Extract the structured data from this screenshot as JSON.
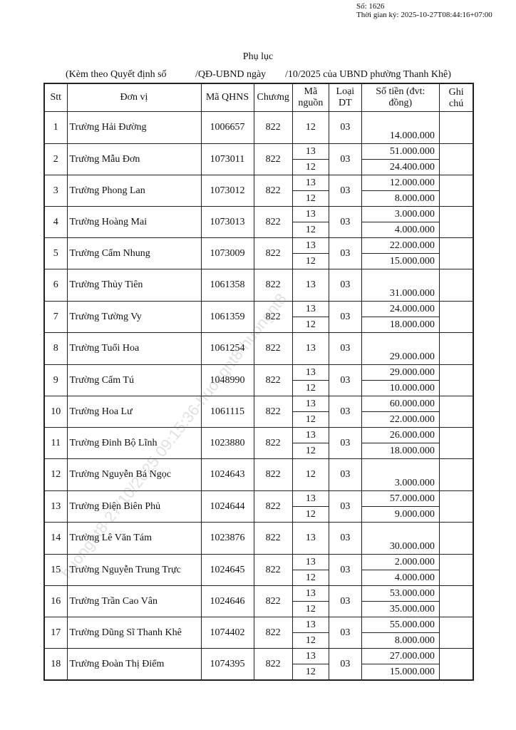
{
  "signature": {
    "number": "Số: 1626",
    "signed_time": "Thời gian ký: 2025-10-27T08:44:16+07:00"
  },
  "title": "Phụ lục",
  "subtitle": {
    "part1": "(Kèm theo Quyết định số",
    "part2": "/QĐ-UBND ngày",
    "part3": "/10/2025 của UBND phường Thanh Khê)"
  },
  "watermark": "huongnt8-27/10/2025 09:15:36-huongnt8-huongnt8",
  "table": {
    "headers": {
      "stt": "Stt",
      "unit": "Đơn vị",
      "qhns": "Mã QHNS",
      "chapter": "Chương",
      "source": "Mã nguồn",
      "type": "Loại DT",
      "amount": "Số tiền (đvt: đồng)",
      "note": "Ghi chú"
    },
    "rows": [
      {
        "stt": "1",
        "unit": "Trường Hải Đường",
        "qhns": "1006657",
        "chapter": "822",
        "type": "03",
        "lines": [
          {
            "source": "12",
            "amount": "14.000.000"
          }
        ]
      },
      {
        "stt": "2",
        "unit": "Trường Mẫu Đơn",
        "qhns": "1073011",
        "chapter": "822",
        "type": "03",
        "lines": [
          {
            "source": "13",
            "amount": "51.000.000"
          },
          {
            "source": "12",
            "amount": "24.400.000"
          }
        ]
      },
      {
        "stt": "3",
        "unit": "Trường Phong Lan",
        "qhns": "1073012",
        "chapter": "822",
        "type": "03",
        "lines": [
          {
            "source": "13",
            "amount": "12.000.000"
          },
          {
            "source": "12",
            "amount": "8.000.000"
          }
        ]
      },
      {
        "stt": "4",
        "unit": "Trường Hoàng Mai",
        "qhns": "1073013",
        "chapter": "822",
        "type": "03",
        "lines": [
          {
            "source": "13",
            "amount": "3.000.000"
          },
          {
            "source": "12",
            "amount": "4.000.000"
          }
        ]
      },
      {
        "stt": "5",
        "unit": "Trường Cẩm Nhung",
        "qhns": "1073009",
        "chapter": "822",
        "type": "03",
        "lines": [
          {
            "source": "13",
            "amount": "22.000.000"
          },
          {
            "source": "12",
            "amount": "15.000.000"
          }
        ]
      },
      {
        "stt": "6",
        "unit": "Trường Thủy Tiên",
        "qhns": "1061358",
        "chapter": "822",
        "type": "03",
        "lines": [
          {
            "source": "13",
            "amount": "31.000.000"
          }
        ]
      },
      {
        "stt": "7",
        "unit": "Trường Tường Vy",
        "qhns": "1061359",
        "chapter": "822",
        "type": "03",
        "lines": [
          {
            "source": "13",
            "amount": "24.000.000"
          },
          {
            "source": "12",
            "amount": "18.000.000"
          }
        ]
      },
      {
        "stt": "8",
        "unit": "Trường Tuổi Hoa",
        "qhns": "1061254",
        "chapter": "822",
        "type": "03",
        "lines": [
          {
            "source": "13",
            "amount": "29.000.000"
          }
        ]
      },
      {
        "stt": "9",
        "unit": "Trường Cẩm Tú",
        "qhns": "1048990",
        "chapter": "822",
        "type": "03",
        "lines": [
          {
            "source": "13",
            "amount": "29.000.000"
          },
          {
            "source": "12",
            "amount": "10.000.000"
          }
        ]
      },
      {
        "stt": "10",
        "unit": "Trường Hoa Lư",
        "qhns": "1061115",
        "chapter": "822",
        "type": "03",
        "lines": [
          {
            "source": "13",
            "amount": "60.000.000"
          },
          {
            "source": "12",
            "amount": "22.000.000"
          }
        ]
      },
      {
        "stt": "11",
        "unit": "Trường Đinh Bộ Lĩnh",
        "qhns": "1023880",
        "chapter": "822",
        "type": "03",
        "lines": [
          {
            "source": "13",
            "amount": "26.000.000"
          },
          {
            "source": "12",
            "amount": "18.000.000"
          }
        ]
      },
      {
        "stt": "12",
        "unit": "Trường Nguyễn Bá Ngọc",
        "qhns": "1024643",
        "chapter": "822",
        "type": "03",
        "lines": [
          {
            "source": "12",
            "amount": "3.000.000"
          }
        ]
      },
      {
        "stt": "13",
        "unit": "Trường Điện Biên Phủ",
        "qhns": "1024644",
        "chapter": "822",
        "type": "03",
        "lines": [
          {
            "source": "13",
            "amount": "57.000.000"
          },
          {
            "source": "12",
            "amount": "9.000.000"
          }
        ]
      },
      {
        "stt": "14",
        "unit": "Trường Lê Văn Tám",
        "qhns": "1023876",
        "chapter": "822",
        "type": "03",
        "lines": [
          {
            "source": "13",
            "amount": "30.000.000"
          }
        ]
      },
      {
        "stt": "15",
        "unit": "Trường Nguyễn Trung Trực",
        "qhns": "1024645",
        "chapter": "822",
        "type": "03",
        "lines": [
          {
            "source": "13",
            "amount": "2.000.000"
          },
          {
            "source": "12",
            "amount": "4.000.000"
          }
        ]
      },
      {
        "stt": "16",
        "unit": "Trường Trần Cao Vân",
        "qhns": "1024646",
        "chapter": "822",
        "type": "03",
        "lines": [
          {
            "source": "13",
            "amount": "53.000.000"
          },
          {
            "source": "12",
            "amount": "35.000.000"
          }
        ]
      },
      {
        "stt": "17",
        "unit": "Trường Dũng Sĩ Thanh Khê",
        "qhns": "1074402",
        "chapter": "822",
        "type": "03",
        "lines": [
          {
            "source": "13",
            "amount": "55.000.000"
          },
          {
            "source": "12",
            "amount": "8.000.000"
          }
        ]
      },
      {
        "stt": "18",
        "unit": "Trường Đoàn Thị Điểm",
        "qhns": "1074395",
        "chapter": "822",
        "type": "03",
        "lines": [
          {
            "source": "13",
            "amount": "27.000.000"
          },
          {
            "source": "12",
            "amount": "15.000.000"
          }
        ]
      }
    ]
  }
}
